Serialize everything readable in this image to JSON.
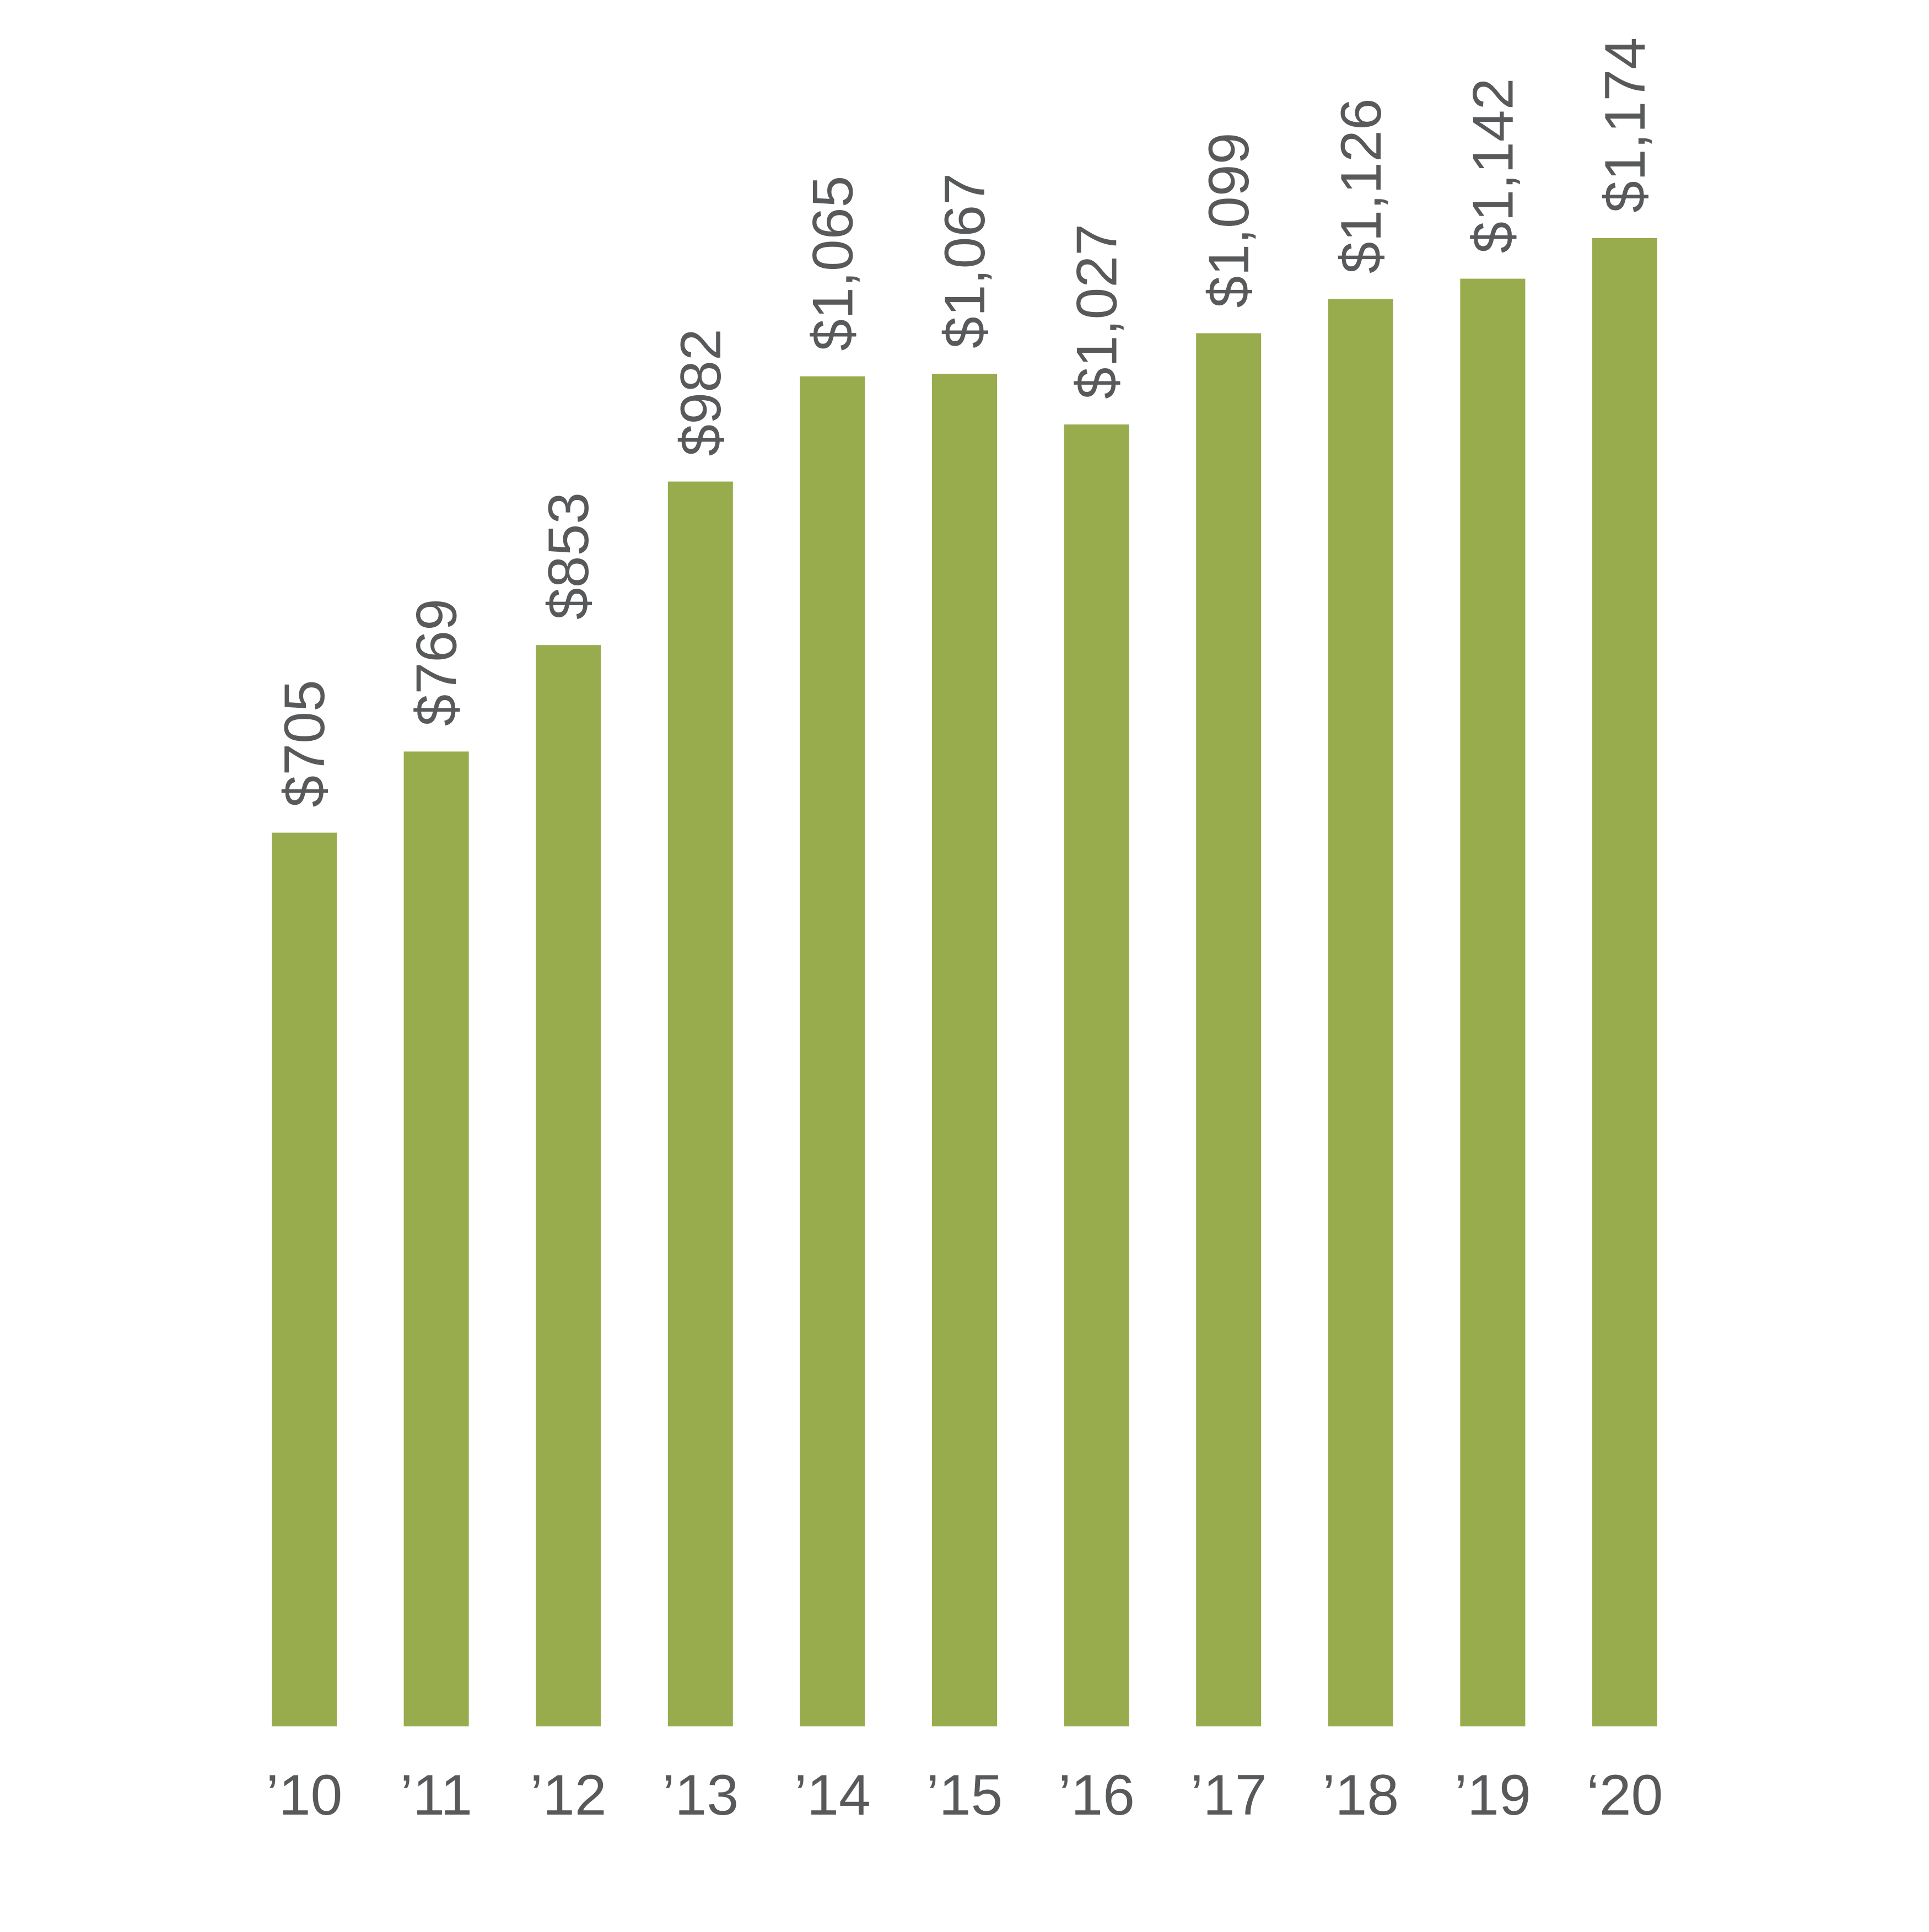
{
  "chart_data": {
    "type": "bar",
    "categories": [
      "’10",
      "’11",
      "’12",
      "’13",
      "’14",
      "’15",
      "’16",
      "’17",
      "’18",
      "’19",
      "‘20"
    ],
    "values": [
      705,
      769,
      853,
      982,
      1065,
      1067,
      1027,
      1099,
      1126,
      1142,
      1174
    ],
    "value_labels": [
      "$705",
      "$769",
      "$853",
      "$982",
      "$1,065",
      "$1,067",
      "$1,027",
      "$1,099",
      "$1,126",
      "$1,142",
      "$1,174"
    ],
    "title": "",
    "xlabel": "",
    "ylabel": "",
    "ylim": [
      0,
      1174
    ],
    "grid": false,
    "legend": "none",
    "value_label_orientation": "vertical",
    "colors": {
      "bar": "#98ac4d",
      "text": "#58595b",
      "background": "#ffffff"
    }
  }
}
